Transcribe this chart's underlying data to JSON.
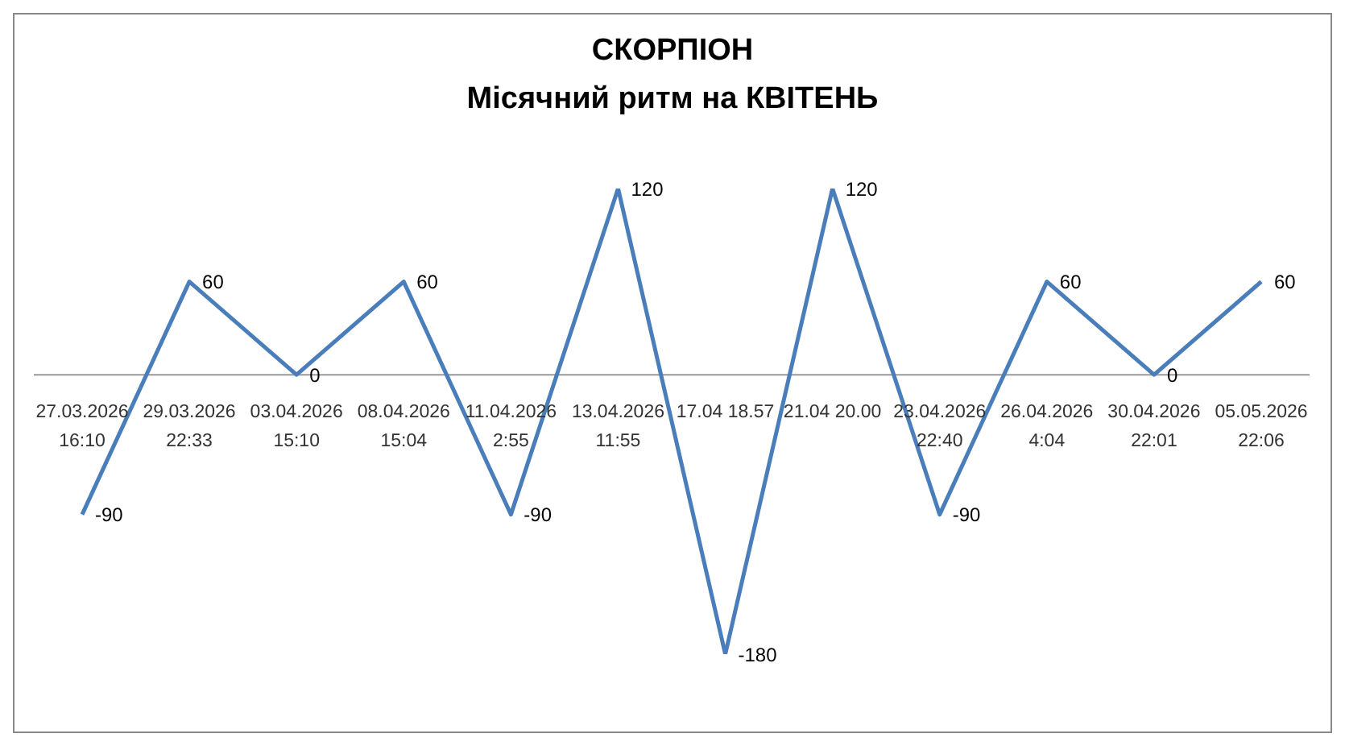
{
  "chart_data": {
    "type": "line",
    "title": "СКОРПІОН",
    "subtitle": "Місячний ритм на КВІТЕНЬ",
    "categories": [
      "27.03.2026\n16:10",
      "29.03.2026\n22:33",
      "03.04.2026\n15:10",
      "08.04.2026\n15:04",
      "11.04.2026\n2:55",
      "13.04.2026\n11:55",
      "17.04 18.57",
      "21.04 20.00",
      "23.04.2026\n22:40",
      "26.04.2026\n4:04",
      "30.04.2026\n22:01",
      "05.05.2026\n22:06"
    ],
    "series": [
      {
        "color": "#4a7ebb",
        "values": [
          -90,
          60,
          0,
          60,
          -90,
          120,
          -180,
          120,
          -90,
          60,
          0,
          60
        ]
      }
    ],
    "data_labels": true,
    "marker": "none",
    "line_style": "solid"
  }
}
